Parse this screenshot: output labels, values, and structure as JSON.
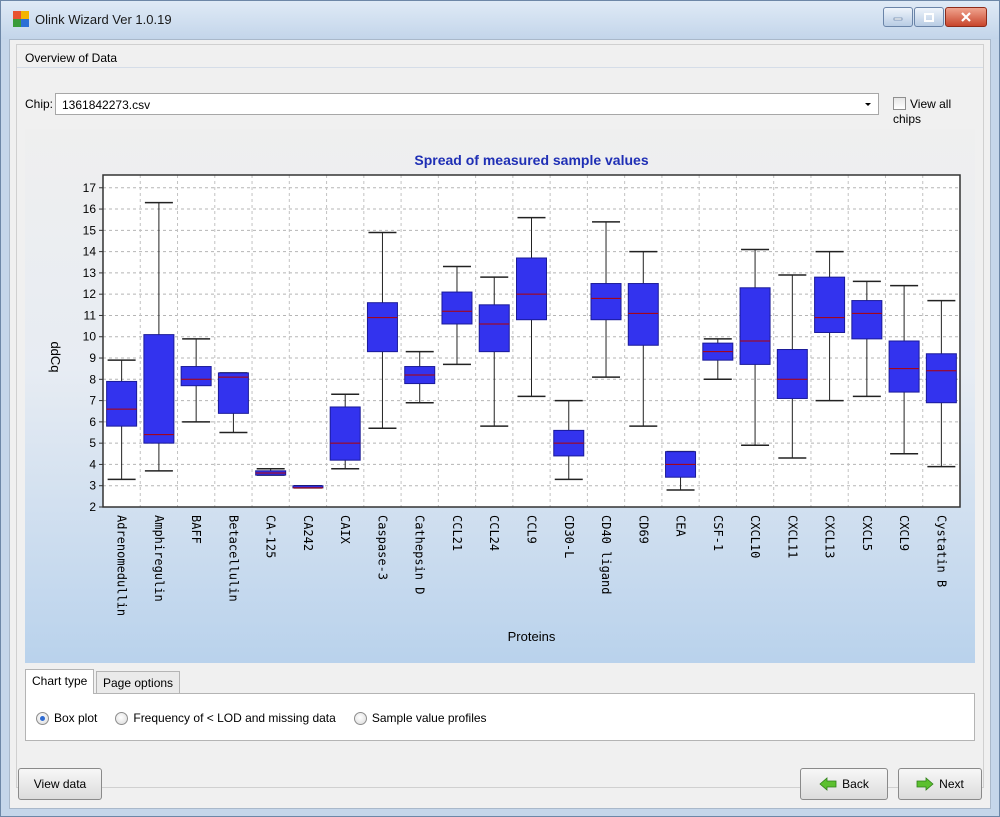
{
  "window": {
    "title": "Olink Wizard Ver 1.0.19",
    "controls": [
      "minimize-icon",
      "maximize-icon",
      "close-icon"
    ]
  },
  "group": {
    "title": "Overview of Data"
  },
  "chip": {
    "label": "Chip:",
    "selected": "1361842273.csv",
    "view_all_label": "View all chips",
    "view_all_checked": false
  },
  "tabs": [
    {
      "label": "Chart type",
      "active": true
    },
    {
      "label": "Page options",
      "active": false
    }
  ],
  "chart_type_options": [
    {
      "label": "Box plot",
      "selected": true
    },
    {
      "label": "Frequency of < LOD and missing data",
      "selected": false
    },
    {
      "label": "Sample value profiles",
      "selected": false
    }
  ],
  "buttons": {
    "view_data": "View data",
    "back": "Back",
    "next": "Next"
  },
  "colors": {
    "box_fill": "#3333ee",
    "box_stroke": "#1a1a99",
    "median": "#b30000",
    "title": "#1f2fb5"
  },
  "chart_data": {
    "type": "box",
    "title": "Spread of measured sample values",
    "xlabel": "Proteins",
    "ylabel": "ddCq",
    "ylim": [
      2,
      17.6
    ],
    "yticks": [
      2,
      3,
      4,
      5,
      6,
      7,
      8,
      9,
      10,
      11,
      12,
      13,
      14,
      15,
      16,
      17
    ],
    "grid": true,
    "categories": [
      "Adrenomedullin",
      "Amphiregulin",
      "BAFF",
      "Betacellulin",
      "CA-125",
      "CA242",
      "CAIX",
      "Caspase-3",
      "Cathepsin D",
      "CCL21",
      "CCL24",
      "CCL9",
      "CD30-L",
      "CD40 ligand",
      "CD69",
      "CEA",
      "CSF-1",
      "CXCL10",
      "CXCL11",
      "CXCL13",
      "CXCL5",
      "CXCL9",
      "Cystatin B"
    ],
    "boxes": [
      {
        "min": 3.3,
        "q1": 5.8,
        "median": 6.6,
        "q3": 7.9,
        "max": 8.9
      },
      {
        "min": 3.7,
        "q1": 5.0,
        "median": 5.4,
        "q3": 10.1,
        "max": 16.3
      },
      {
        "min": 6.0,
        "q1": 7.7,
        "median": 8.0,
        "q3": 8.6,
        "max": 9.9
      },
      {
        "min": 5.5,
        "q1": 6.4,
        "median": 8.1,
        "q3": 8.3,
        "max": 8.3
      },
      {
        "min": 3.5,
        "q1": 3.5,
        "median": 3.6,
        "q3": 3.7,
        "max": 3.8
      },
      {
        "min": 2.9,
        "q1": 2.9,
        "median": 2.9,
        "q3": 3.0,
        "max": 3.0
      },
      {
        "min": 3.8,
        "q1": 4.2,
        "median": 5.0,
        "q3": 6.7,
        "max": 7.3
      },
      {
        "min": 5.7,
        "q1": 9.3,
        "median": 10.9,
        "q3": 11.6,
        "max": 14.9
      },
      {
        "min": 6.9,
        "q1": 7.8,
        "median": 8.2,
        "q3": 8.6,
        "max": 9.3
      },
      {
        "min": 8.7,
        "q1": 10.6,
        "median": 11.2,
        "q3": 12.1,
        "max": 13.3
      },
      {
        "min": 5.8,
        "q1": 9.3,
        "median": 10.6,
        "q3": 11.5,
        "max": 12.8
      },
      {
        "min": 7.2,
        "q1": 10.8,
        "median": 12.0,
        "q3": 13.7,
        "max": 15.6
      },
      {
        "min": 3.3,
        "q1": 4.4,
        "median": 5.0,
        "q3": 5.6,
        "max": 7.0
      },
      {
        "min": 8.1,
        "q1": 10.8,
        "median": 11.8,
        "q3": 12.5,
        "max": 15.4
      },
      {
        "min": 5.8,
        "q1": 9.6,
        "median": 11.1,
        "q3": 12.5,
        "max": 14.0
      },
      {
        "min": 2.8,
        "q1": 3.4,
        "median": 4.0,
        "q3": 4.6,
        "max": 4.6
      },
      {
        "min": 8.0,
        "q1": 8.9,
        "median": 9.3,
        "q3": 9.7,
        "max": 9.9
      },
      {
        "min": 4.9,
        "q1": 8.7,
        "median": 9.8,
        "q3": 12.3,
        "max": 14.1
      },
      {
        "min": 4.3,
        "q1": 7.1,
        "median": 8.0,
        "q3": 9.4,
        "max": 12.9
      },
      {
        "min": 7.0,
        "q1": 10.2,
        "median": 10.9,
        "q3": 12.8,
        "max": 14.0
      },
      {
        "min": 7.2,
        "q1": 9.9,
        "median": 11.1,
        "q3": 11.7,
        "max": 12.6
      },
      {
        "min": 4.5,
        "q1": 7.4,
        "median": 8.5,
        "q3": 9.8,
        "max": 12.4
      },
      {
        "min": 3.9,
        "q1": 6.9,
        "median": 8.4,
        "q3": 9.2,
        "max": 11.7
      }
    ]
  }
}
